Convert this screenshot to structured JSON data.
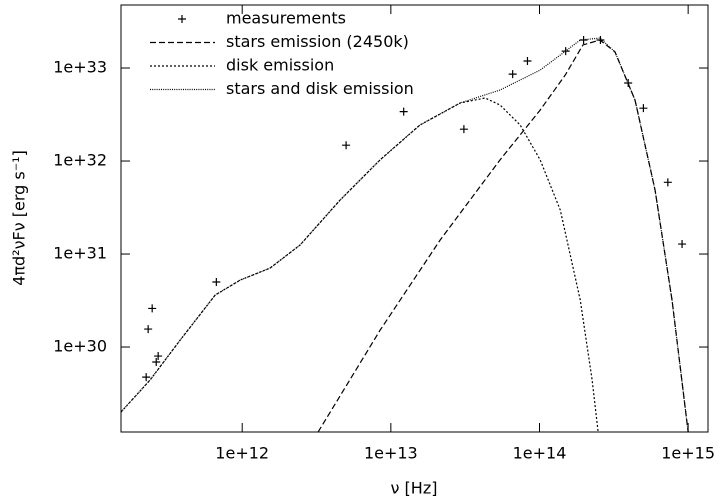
{
  "chart_data": {
    "type": "line",
    "x_label": "ν [Hz]",
    "y_label": "4πd²νFν [erg s⁻¹]",
    "log_x": true,
    "log_y": true,
    "legend": "top-left",
    "xlim": [
      153000000000.0,
      1360000000000000.0
    ],
    "ylim": [
      1.22e+29,
      4.76e+33
    ],
    "xticks": [
      {
        "value": 1000000000000.0,
        "label": "1e+12"
      },
      {
        "value": 10000000000000.0,
        "label": "1e+13"
      },
      {
        "value": 100000000000000.0,
        "label": "1e+14"
      },
      {
        "value": 1000000000000000.0,
        "label": "1e+15"
      }
    ],
    "yticks": [
      {
        "value": 1e+30,
        "label": "1e+30"
      },
      {
        "value": 1e+31,
        "label": "1e+31"
      },
      {
        "value": 1e+32,
        "label": "1e+32"
      },
      {
        "value": 1e+33,
        "label": "1e+33"
      }
    ],
    "series": [
      {
        "name": "measurements",
        "color": "#000000",
        "mode": "markers",
        "x": [
          226000000000.0,
          264000000000.0,
          272000000000.0,
          233000000000.0,
          248000000000.0,
          670000000000.0,
          5000000000000.0,
          12200000000000.0,
          31000000000000.0,
          66000000000000.0,
          83000000000000.0,
          150000000000000.0,
          198000000000000.0,
          257000000000000.0,
          395000000000000.0,
          500000000000000.0,
          730000000000000.0,
          910000000000000.0
        ],
        "values": [
          4.75e+29,
          6.9e+29,
          8e+29,
          1.56e+30,
          2.6e+30,
          5e+30,
          1.48e+32,
          3.4e+32,
          2.2e+32,
          8.6e+32,
          1.19e+33,
          1.52e+33,
          2e+33,
          2e+33,
          6.9e+32,
          3.7e+32,
          5.9e+31,
          1.28e+31
        ]
      },
      {
        "name": "stars emission (2450k)",
        "color": "#000000",
        "mode": "lines",
        "line_style": "dashed",
        "x": [
          3240000000000.0,
          8470000000000.0,
          21500000000000.0,
          54300000000000.0,
          101000000000000.0,
          149000000000000.0,
          196000000000000.0,
          255000000000000.0,
          322000000000000.0,
          439000000000000.0,
          599000000000000.0,
          779000000000000.0,
          1000000000000000.0
        ],
        "values": [
          1.22e+29,
          1.52e+30,
          1.42e+31,
          1.03e+32,
          3.53e+32,
          8.41e+32,
          1.77e+33,
          2e+33,
          1.49e+33,
          4.53e+32,
          4.88e+31,
          3.2e+30,
          1.22e+29
        ]
      },
      {
        "name": "disk emission",
        "color": "#000000",
        "mode": "lines",
        "line_style": "dotted",
        "x": [
          153000000000.0,
          240000000000.0,
          383000000000.0,
          658000000000.0,
          970000000000.0,
          1540000000000.0,
          2450000000000.0,
          4560000000000.0,
          8470000000000.0,
          15700000000000.0,
          29300000000000.0,
          43100000000000.0,
          54300000000000.0,
          74100000000000.0,
          101000000000000.0,
          138000000000000.0,
          188000000000000.0,
          226000000000000.0,
          248000000000000.0
        ],
        "values": [
          2e+29,
          4.42e+29,
          1.19e+30,
          3.62e+30,
          5.25e+30,
          7.06e+30,
          1.25e+31,
          3.81e+31,
          1.03e+32,
          2.44e+32,
          4.21e+32,
          4.76e+32,
          4e+32,
          2.44e+32,
          1.03e+32,
          2.97e+31,
          3.2e+30,
          4.42e+29,
          1.22e+29
        ]
      },
      {
        "name": "stars and disk emission",
        "color": "#000000",
        "mode": "lines",
        "line_style": "fine-dotted",
        "x": [
          153000000000.0,
          240000000000.0,
          383000000000.0,
          658000000000.0,
          970000000000.0,
          1540000000000.0,
          2450000000000.0,
          4560000000000.0,
          8470000000000.0,
          15700000000000.0,
          29300000000000.0,
          54300000000000.0,
          74100000000000.0,
          101000000000000.0,
          138000000000000.0,
          188000000000000.0,
          255000000000000.0,
          322000000000000.0,
          439000000000000.0,
          599000000000000.0,
          779000000000000.0,
          1000000000000000.0
        ],
        "values": [
          2e+29,
          4.42e+29,
          1.19e+30,
          3.62e+30,
          5.25e+30,
          7.06e+30,
          1.25e+31,
          3.81e+31,
          1.03e+32,
          2.44e+32,
          4.21e+32,
          5.8e+32,
          7.43e+32,
          9.5e+32,
          1.38e+33,
          2e+33,
          2.1e+33,
          1.49e+33,
          4.53e+32,
          4.88e+31,
          3.2e+30,
          1.22e+29
        ]
      }
    ]
  }
}
